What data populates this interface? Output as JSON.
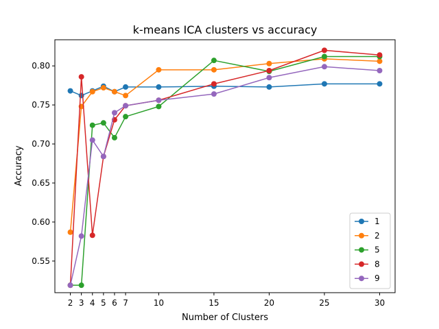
{
  "chart_data": {
    "type": "line",
    "title": "k-means ICA clusters vs accuracy",
    "xlabel": "Number of Clusters",
    "ylabel": "Accuracy",
    "x": [
      2,
      3,
      4,
      5,
      6,
      7,
      10,
      15,
      20,
      25,
      30
    ],
    "xticks": [
      2,
      3,
      4,
      5,
      6,
      7,
      10,
      15,
      20,
      25,
      30
    ],
    "xlim": [
      0.6,
      31.4
    ],
    "ylim": [
      0.5095,
      0.8335
    ],
    "yticks": [
      0.55,
      0.6,
      0.65,
      0.7,
      0.75,
      0.8
    ],
    "ytick_labels": [
      "0.55",
      "0.60",
      "0.65",
      "0.70",
      "0.75",
      "0.80"
    ],
    "grid": false,
    "legend_position": "lower-right",
    "series": [
      {
        "name": "1",
        "color": "#1f77b4",
        "values": [
          0.768,
          0.762,
          0.768,
          0.774,
          0.767,
          0.773,
          0.773,
          0.774,
          0.773,
          0.777,
          0.777
        ]
      },
      {
        "name": "2",
        "color": "#ff7f0e",
        "values": [
          0.587,
          0.748,
          0.767,
          0.772,
          0.767,
          0.762,
          0.795,
          0.795,
          0.803,
          0.809,
          0.806
        ]
      },
      {
        "name": "5",
        "color": "#2ca02c",
        "values": [
          0.519,
          0.519,
          0.724,
          0.727,
          0.708,
          0.735,
          0.748,
          0.807,
          0.793,
          0.812,
          0.812
        ]
      },
      {
        "name": "8",
        "color": "#d62728",
        "values": [
          0.519,
          0.786,
          0.583,
          0.684,
          0.731,
          0.749,
          0.756,
          0.777,
          0.794,
          0.82,
          0.814
        ]
      },
      {
        "name": "9",
        "color": "#9467bd",
        "values": [
          0.519,
          0.582,
          0.705,
          0.684,
          0.74,
          0.749,
          0.756,
          0.764,
          0.785,
          0.799,
          0.794
        ]
      }
    ]
  }
}
